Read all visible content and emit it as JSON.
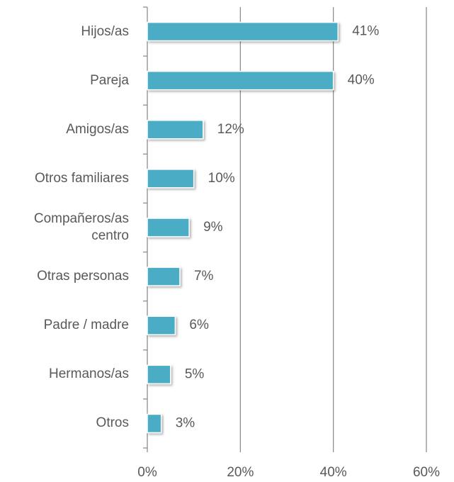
{
  "chart_data": {
    "type": "bar",
    "orientation": "horizontal",
    "categories": [
      "Hijos/as",
      "Pareja",
      "Amigos/as",
      "Otros familiares",
      "Compañeros/as centro",
      "Otras personas",
      "Padre / madre",
      "Hermanos/as",
      "Otros"
    ],
    "values": [
      41,
      40,
      12,
      10,
      9,
      7,
      6,
      5,
      3
    ],
    "value_labels": [
      "41%",
      "40%",
      "12%",
      "10%",
      "9%",
      "7%",
      "6%",
      "5%",
      "3%"
    ],
    "color": "#4bacc6",
    "xlim": [
      0,
      60
    ],
    "xticks": [
      {
        "value": 0,
        "label": "0%"
      },
      {
        "value": 20,
        "label": "20%"
      },
      {
        "value": 40,
        "label": "40%"
      },
      {
        "value": 60,
        "label": "60%"
      }
    ],
    "grid": true
  }
}
